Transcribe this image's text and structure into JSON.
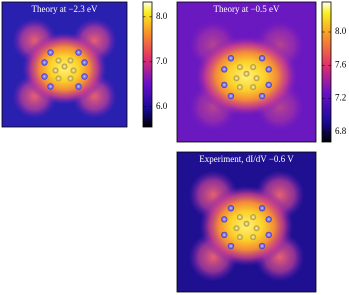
{
  "chart_data": [
    {
      "type": "heatmap",
      "title": "Theory at −2.3 eV",
      "zlim": [
        5.55,
        8.33
      ],
      "zticks": [
        {
          "value": 6,
          "label": "6.0"
        },
        {
          "value": 7,
          "label": "7.0"
        },
        {
          "value": 8,
          "label": "8.0"
        }
      ]
    },
    {
      "type": "heatmap",
      "title": "Theory at −0.5 eV",
      "zlim": [
        6.68,
        8.36
      ],
      "zticks": [
        {
          "value": 6.8,
          "label": "6.8"
        },
        {
          "value": 7.2,
          "label": "7.2"
        },
        {
          "value": 7.6,
          "label": "7.6"
        },
        {
          "value": 8,
          "label": "8.0"
        }
      ]
    },
    {
      "type": "heatmap",
      "title": "Experiment, dI/dV −0.6 V"
    }
  ]
}
